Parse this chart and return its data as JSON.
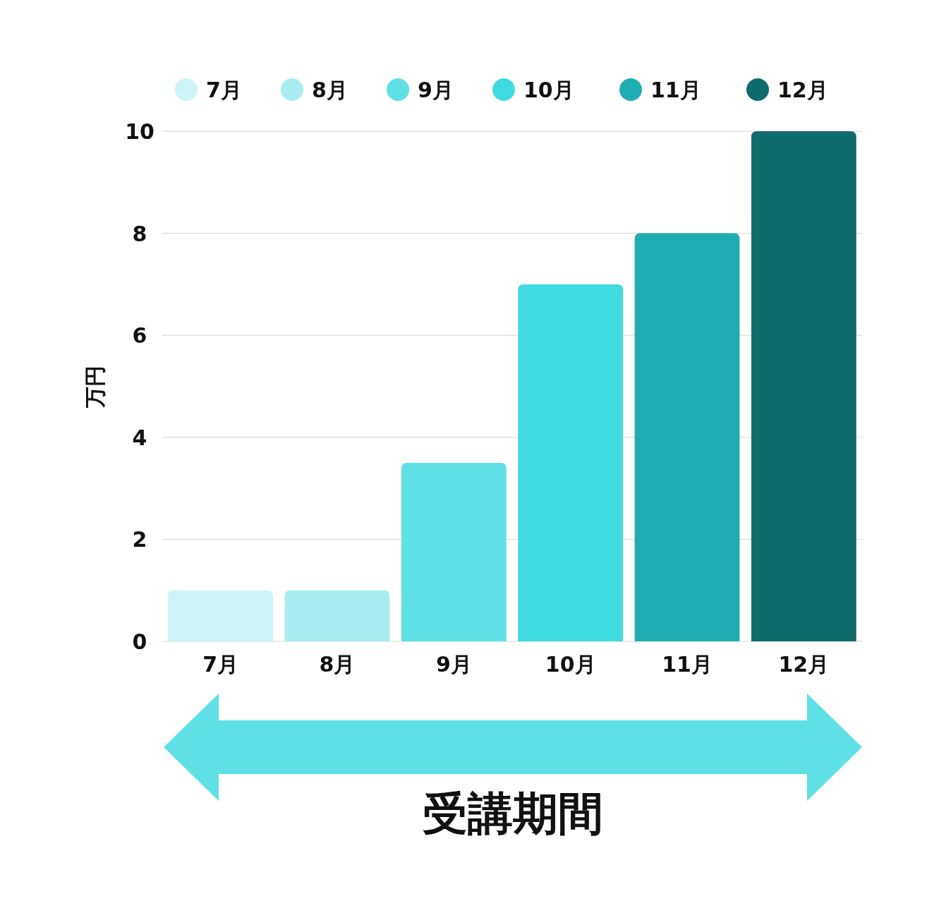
{
  "chart_data": {
    "type": "bar",
    "xlabel": "受講期間",
    "ylabel": "万円",
    "categories": [
      "7月",
      "8月",
      "9月",
      "10月",
      "11月",
      "12月"
    ],
    "series": [
      {
        "name": "7月",
        "color": "#cdf4f6",
        "values": [
          1,
          null,
          null,
          null,
          null,
          null
        ]
      },
      {
        "name": "8月",
        "color": "#a9edf1",
        "values": [
          null,
          1,
          null,
          null,
          null,
          null
        ]
      },
      {
        "name": "9月",
        "color": "#5fe0e6",
        "values": [
          null,
          null,
          3.5,
          null,
          null,
          null
        ]
      },
      {
        "name": "10月",
        "color": "#3fdbe0",
        "values": [
          null,
          null,
          null,
          7,
          null,
          null
        ]
      },
      {
        "name": "11月",
        "color": "#1fadb3",
        "values": [
          null,
          null,
          null,
          null,
          8,
          null
        ]
      },
      {
        "name": "12月",
        "color": "#106b6b",
        "values": [
          null,
          null,
          null,
          null,
          null,
          10
        ]
      }
    ],
    "ylim": [
      0,
      10
    ],
    "yticks": [
      0,
      2,
      4,
      6,
      8,
      10
    ],
    "grid": "y",
    "legend": "top"
  }
}
